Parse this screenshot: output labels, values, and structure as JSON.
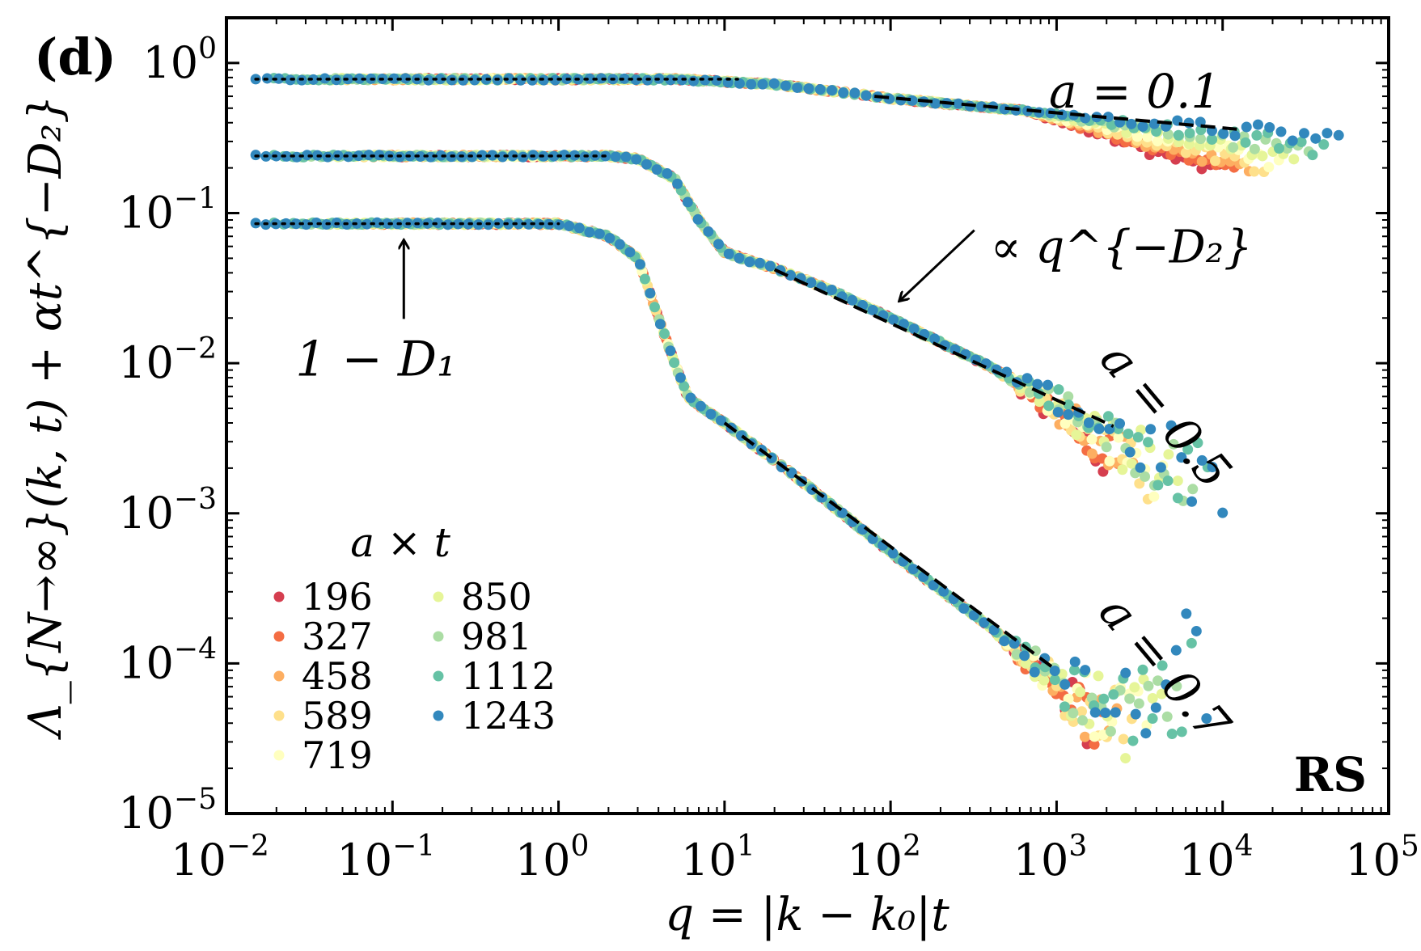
{
  "chart_data": {
    "type": "scatter",
    "panel_label": "(d)",
    "corner_label": "RS",
    "x_scale": "log",
    "y_scale": "log",
    "xlim": [
      0.01,
      100000
    ],
    "ylim": [
      1e-05,
      2.0
    ],
    "xlabel": "q = |k − k₀|t",
    "ylabel": "Λ_{N→∞}(k, t) + αt^{−D₂}",
    "x_tick_labels": [
      {
        "base": "10",
        "exp": "−2",
        "value": 0.01
      },
      {
        "base": "10",
        "exp": "−1",
        "value": 0.1
      },
      {
        "base": "10",
        "exp": "0",
        "value": 1
      },
      {
        "base": "10",
        "exp": "1",
        "value": 10
      },
      {
        "base": "10",
        "exp": "2",
        "value": 100
      },
      {
        "base": "10",
        "exp": "3",
        "value": 1000
      },
      {
        "base": "10",
        "exp": "4",
        "value": 10000
      },
      {
        "base": "10",
        "exp": "5",
        "value": 100000
      }
    ],
    "y_tick_labels": [
      {
        "base": "10",
        "exp": "0",
        "value": 1
      },
      {
        "base": "10",
        "exp": "−1",
        "value": 0.1
      },
      {
        "base": "10",
        "exp": "−2",
        "value": 0.01
      },
      {
        "base": "10",
        "exp": "−3",
        "value": 0.001
      },
      {
        "base": "10",
        "exp": "−4",
        "value": 0.0001
      },
      {
        "base": "10",
        "exp": "−5",
        "value": 1e-05
      }
    ],
    "legend": {
      "title": "a × t",
      "placement": "lower-left",
      "entries": [
        {
          "label": "196",
          "color": "#d53e4f"
        },
        {
          "label": "327",
          "color": "#f46d43"
        },
        {
          "label": "458",
          "color": "#fdae61"
        },
        {
          "label": "589",
          "color": "#fee08b"
        },
        {
          "label": "719",
          "color": "#ffffbf"
        },
        {
          "label": "850",
          "color": "#e6f598"
        },
        {
          "label": "981",
          "color": "#abdda4"
        },
        {
          "label": "1112",
          "color": "#66c2a5"
        },
        {
          "label": "1243",
          "color": "#3288bd"
        }
      ]
    },
    "curves": [
      {
        "name": "a = 0.1",
        "plateau": 0.78,
        "shape_points": [
          [
            0.015,
            0.78
          ],
          [
            5,
            0.78
          ],
          [
            20,
            0.72
          ],
          [
            50,
            0.64
          ],
          [
            100,
            0.58
          ],
          [
            300,
            0.52
          ],
          [
            1000,
            0.46
          ],
          [
            3000,
            0.41
          ],
          [
            10000,
            0.37
          ],
          [
            50000,
            0.32
          ]
        ],
        "plateau_line": {
          "x": [
            0.015,
            12
          ],
          "y": 0.78
        },
        "fit_line": {
          "x": [
            80,
            13000
          ],
          "y": [
            0.6,
            0.36
          ]
        },
        "tail_spread": 0.08
      },
      {
        "name": "a = 0.5",
        "plateau": 0.24,
        "shape_points": [
          [
            0.015,
            0.24
          ],
          [
            2,
            0.24
          ],
          [
            3,
            0.23
          ],
          [
            5,
            0.17
          ],
          [
            7,
            0.09
          ],
          [
            10,
            0.055
          ],
          [
            15,
            0.047
          ],
          [
            20,
            0.043
          ],
          [
            40,
            0.032
          ],
          [
            100,
            0.02
          ],
          [
            300,
            0.011
          ],
          [
            1000,
            0.0059
          ],
          [
            2000,
            0.004
          ],
          [
            5000,
            0.0025
          ],
          [
            10000,
            0.0016
          ]
        ],
        "plateau_line": {
          "x": [
            0.015,
            2
          ],
          "y": 0.24
        },
        "fit_line": {
          "x": [
            20,
            2200
          ],
          "y": [
            0.042,
            0.0038
          ]
        },
        "tail_spread": 0.45
      },
      {
        "name": "a = 0.7",
        "plateau": 0.085,
        "shape_points": [
          [
            0.015,
            0.085
          ],
          [
            1,
            0.085
          ],
          [
            2,
            0.07
          ],
          [
            3,
            0.05
          ],
          [
            4,
            0.02
          ],
          [
            5,
            0.01
          ],
          [
            6,
            0.006
          ],
          [
            8,
            0.0047
          ],
          [
            10,
            0.004
          ],
          [
            30,
            0.0016
          ],
          [
            100,
            0.00055
          ],
          [
            300,
            0.00022
          ],
          [
            1000,
            8.5e-05
          ],
          [
            3000,
            5e-05
          ],
          [
            8000,
            0.00014
          ]
        ],
        "plateau_line": {
          "x": [
            0.015,
            1
          ],
          "y": 0.085
        },
        "fit_line": {
          "x": [
            10,
            1000
          ],
          "y": [
            0.004,
            9e-05
          ]
        },
        "tail_spread": 0.7
      }
    ],
    "annotations": [
      {
        "id": "a01",
        "text": "a = 0.1",
        "x": 900,
        "y": 0.78,
        "rotation": 0
      },
      {
        "id": "a05",
        "text": "a = 0.5",
        "x": 3500,
        "y": 0.005,
        "rotation": 50
      },
      {
        "id": "a07",
        "text": "a = 0.7",
        "x": 2600,
        "y": 0.00015,
        "rotation": 50
      },
      {
        "id": "power",
        "text": "∝ q^{−D₂}",
        "x": 400,
        "y": 0.06,
        "arrow_to": [
          100,
          0.028
        ]
      },
      {
        "id": "d1",
        "text": "1 − D₁",
        "x": 0.1,
        "y": 0.012,
        "arrow_to": [
          0.1,
          0.085
        ]
      }
    ]
  }
}
